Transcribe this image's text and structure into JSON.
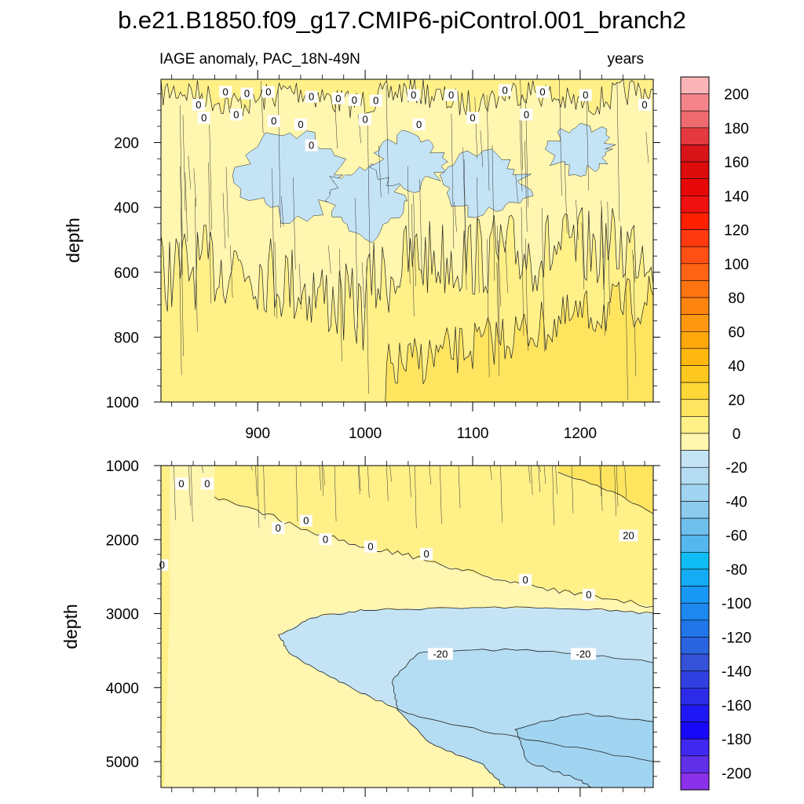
{
  "chart_data": {
    "type": "heatmap",
    "title": "b.e21.B1850.f09_g17.CMIP6-piControl.001_branch2",
    "variable_label": "IAGE anomaly, PAC_18N-49N",
    "units_label": "years",
    "ylabel": "depth",
    "xlim": [
      810,
      1268
    ],
    "x_ticks": [
      900,
      1000,
      1100,
      1200
    ],
    "x_tick_labels": [
      "900",
      "1000",
      "1100",
      "1200"
    ],
    "colorbar": {
      "min": -210,
      "max": 210,
      "step": 10,
      "tick_values": [
        200,
        180,
        160,
        140,
        120,
        100,
        80,
        60,
        40,
        20,
        0,
        -20,
        -40,
        -60,
        -80,
        -100,
        -120,
        -140,
        -160,
        -180,
        -200
      ],
      "tick_labels": [
        "200",
        "180",
        "160",
        "140",
        "120",
        "100",
        "80",
        "60",
        "40",
        "20",
        "0",
        "-20",
        "-40",
        "-60",
        "-80",
        "-100",
        "-120",
        "-140",
        "-160",
        "-180",
        "-200"
      ],
      "colors_top_to_bottom": [
        "#fbb4b8",
        "#f4848a",
        "#ee6a6f",
        "#e43a3f",
        "#d81418",
        "#dc0c0c",
        "#e60808",
        "#f01010",
        "#ff2000",
        "#ff3a10",
        "#ff5014",
        "#ff6414",
        "#ff7410",
        "#ff8410",
        "#ff9810",
        "#ffa80c",
        "#ffb810",
        "#ffc820",
        "#ffd838",
        "#ffe460",
        "#fff088",
        "#fff6b0",
        "#c4e4f6",
        "#b4dcf2",
        "#a0d4f0",
        "#8ccaee",
        "#70c0ee",
        "#54b8ee",
        "#10bcf4",
        "#14acf4",
        "#1898f4",
        "#1c88f0",
        "#2076e8",
        "#2a64e0",
        "#3452d8",
        "#3040e0",
        "#2c2ce8",
        "#2018f4",
        "#1808f8",
        "#4028f0",
        "#6030e8",
        "#8a30e8"
      ]
    },
    "upper_panel": {
      "depth_range": [
        5,
        1000
      ],
      "y_ticks": [
        200,
        400,
        600,
        800,
        1000
      ],
      "y_tick_labels": [
        "200",
        "400",
        "600",
        "800",
        "1000"
      ],
      "description": "Noisy shallow anomaly field; negative (-20 to 0) water-mass in 200-600 m mid-period, positive (0 to 20) below 600 m later",
      "contour_labels": [
        {
          "year": 845,
          "depth": 85,
          "label": "0"
        },
        {
          "year": 870,
          "depth": 45,
          "label": "0"
        },
        {
          "year": 890,
          "depth": 50,
          "label": "0"
        },
        {
          "year": 910,
          "depth": 45,
          "label": "0"
        },
        {
          "year": 950,
          "depth": 60,
          "label": "0"
        },
        {
          "year": 975,
          "depth": 65,
          "label": "0"
        },
        {
          "year": 990,
          "depth": 70,
          "label": "0"
        },
        {
          "year": 1010,
          "depth": 72,
          "label": "0"
        },
        {
          "year": 1045,
          "depth": 55,
          "label": "0"
        },
        {
          "year": 1080,
          "depth": 55,
          "label": "0"
        },
        {
          "year": 1130,
          "depth": 40,
          "label": "0"
        },
        {
          "year": 1165,
          "depth": 45,
          "label": "0"
        },
        {
          "year": 1205,
          "depth": 55,
          "label": "0"
        },
        {
          "year": 1260,
          "depth": 85,
          "label": "0"
        },
        {
          "year": 850,
          "depth": 125,
          "label": "0"
        },
        {
          "year": 880,
          "depth": 115,
          "label": "0"
        },
        {
          "year": 915,
          "depth": 135,
          "label": "0"
        },
        {
          "year": 940,
          "depth": 145,
          "label": "0"
        },
        {
          "year": 950,
          "depth": 210,
          "label": "0"
        },
        {
          "year": 1000,
          "depth": 130,
          "label": "0"
        },
        {
          "year": 1050,
          "depth": 145,
          "label": "0"
        },
        {
          "year": 1100,
          "depth": 125,
          "label": "0"
        },
        {
          "year": 1150,
          "depth": 115,
          "label": "0"
        }
      ]
    },
    "lower_panel": {
      "depth_range": [
        1000,
        5350
      ],
      "y_ticks": [
        1000,
        2000,
        3000,
        4000,
        5000
      ],
      "y_tick_labels": [
        "1000",
        "2000",
        "3000",
        "4000",
        "5000"
      ],
      "description": "Positive (0 to 20) anomaly above a boundary deepening from ~1600 m to ~2900 m; negative (-20 to -40) anomaly growing at depth toward later years",
      "contours": [
        {
          "level": 20,
          "points": [
            [
              1180,
              1080
            ],
            [
              1230,
              1350
            ],
            [
              1268,
              1650
            ]
          ]
        },
        {
          "level": 0,
          "points": [
            [
              860,
              1450
            ],
            [
              900,
              1600
            ],
            [
              950,
              1900
            ],
            [
              1000,
              2100
            ],
            [
              1050,
              2250
            ],
            [
              1100,
              2450
            ],
            [
              1150,
              2600
            ],
            [
              1200,
              2750
            ],
            [
              1268,
              2900
            ]
          ]
        },
        {
          "level": -20,
          "points": [
            [
              1268,
              3000
            ],
            [
              1200,
              2930
            ],
            [
              1100,
              2920
            ],
            [
              1000,
              2950
            ],
            [
              950,
              3050
            ],
            [
              920,
              3300
            ],
            [
              930,
              3550
            ],
            [
              960,
              3800
            ],
            [
              1000,
              4100
            ],
            [
              1050,
              4400
            ],
            [
              1150,
              4700
            ],
            [
              1268,
              5000
            ]
          ]
        },
        {
          "level": -20,
          "points": [
            [
              1268,
              3650
            ],
            [
              1150,
              3480
            ],
            [
              1050,
              3520
            ],
            [
              1025,
              3900
            ],
            [
              1030,
              4300
            ],
            [
              1060,
              4750
            ],
            [
              1110,
              5050
            ],
            [
              1130,
              5350
            ]
          ]
        },
        {
          "level": -40,
          "points": [
            [
              1268,
              4450
            ],
            [
              1200,
              4350
            ],
            [
              1140,
              4550
            ],
            [
              1150,
              5000
            ],
            [
              1200,
              5250
            ],
            [
              1210,
              5350
            ]
          ]
        }
      ],
      "contour_labels": [
        {
          "year": 829,
          "depth": 1250,
          "label": "0"
        },
        {
          "year": 853,
          "depth": 1250,
          "label": "0"
        },
        {
          "year": 811,
          "depth": 2350,
          "label": "0"
        },
        {
          "year": 919,
          "depth": 1850,
          "label": "0"
        },
        {
          "year": 945,
          "depth": 1750,
          "label": "0"
        },
        {
          "year": 963,
          "depth": 2000,
          "label": "0"
        },
        {
          "year": 1005,
          "depth": 2100,
          "label": "0"
        },
        {
          "year": 1057,
          "depth": 2200,
          "label": "0"
        },
        {
          "year": 1149,
          "depth": 2550,
          "label": "0"
        },
        {
          "year": 1208,
          "depth": 2750,
          "label": "0"
        },
        {
          "year": 1245,
          "depth": 1950,
          "label": "20"
        },
        {
          "year": 1070,
          "depth": 3550,
          "label": "-20"
        },
        {
          "year": 1203,
          "depth": 3550,
          "label": "-20"
        }
      ]
    }
  }
}
